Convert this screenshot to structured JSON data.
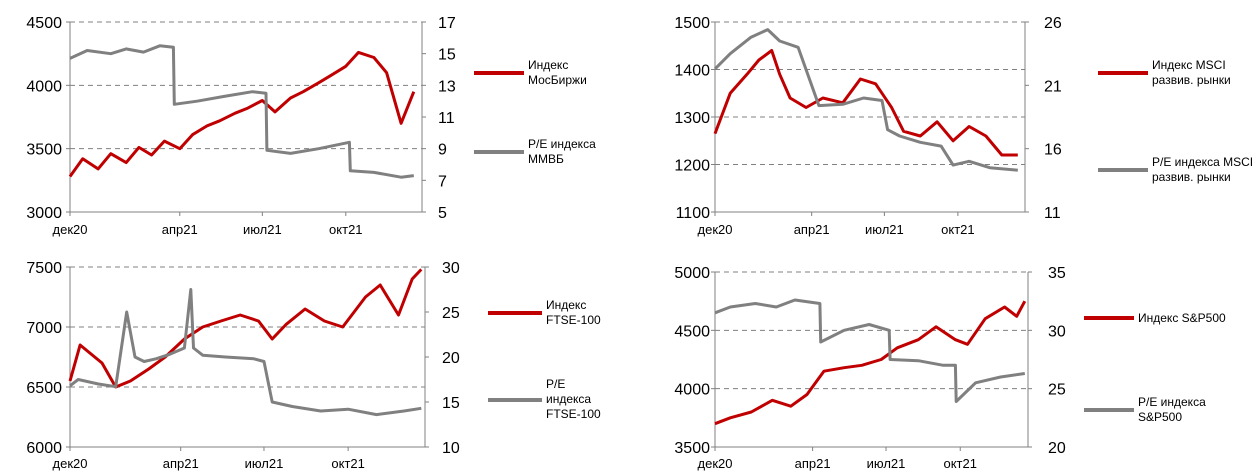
{
  "chart_data": [
    {
      "type": "line",
      "x_ticks": [
        "дек20",
        "апр21",
        "июл21",
        "окт21"
      ],
      "y_left": {
        "min": 3000,
        "max": 4500,
        "ticks": [
          3000,
          3500,
          4000,
          4500
        ]
      },
      "y_right": {
        "min": 5,
        "max": 17,
        "ticks": [
          5,
          7,
          9,
          11,
          13,
          15,
          17
        ]
      },
      "grid": "horizontal-dashed",
      "legend": "right",
      "series": [
        {
          "name": "Индекс МосБиржи",
          "color": "#c00000",
          "axis": "left",
          "x": [
            "2020-12-01",
            "2020-12-15",
            "2021-01-01",
            "2021-01-15",
            "2021-02-01",
            "2021-02-15",
            "2021-03-01",
            "2021-03-15",
            "2021-04-01",
            "2021-04-15",
            "2021-05-01",
            "2021-05-15",
            "2021-06-01",
            "2021-06-15",
            "2021-07-01",
            "2021-07-15",
            "2021-08-01",
            "2021-08-15",
            "2021-09-01",
            "2021-09-15",
            "2021-10-01",
            "2021-10-15",
            "2021-11-01",
            "2021-11-15",
            "2021-12-01",
            "2021-12-15"
          ],
          "y": [
            3280,
            3420,
            3340,
            3460,
            3390,
            3510,
            3450,
            3560,
            3500,
            3610,
            3680,
            3720,
            3780,
            3820,
            3880,
            3790,
            3900,
            3950,
            4020,
            4080,
            4150,
            4260,
            4220,
            4100,
            3700,
            3950
          ]
        },
        {
          "name": "P/E индекса ММВБ",
          "color": "#808080",
          "axis": "right",
          "x": [
            "2020-12-01",
            "2020-12-20",
            "2021-01-15",
            "2021-02-01",
            "2021-02-20",
            "2021-03-10",
            "2021-03-25",
            "2021-03-26",
            "2021-04-20",
            "2021-05-20",
            "2021-06-20",
            "2021-07-05",
            "2021-07-06",
            "2021-08-01",
            "2021-09-01",
            "2021-10-05",
            "2021-10-06",
            "2021-11-01",
            "2021-12-01",
            "2021-12-15"
          ],
          "y": [
            14.7,
            15.2,
            15.0,
            15.3,
            15.1,
            15.5,
            15.4,
            11.8,
            12.0,
            12.3,
            12.6,
            12.5,
            8.9,
            8.7,
            9.0,
            9.4,
            7.6,
            7.5,
            7.2,
            7.3
          ]
        }
      ]
    },
    {
      "type": "line",
      "x_ticks": [
        "дек20",
        "апр21",
        "июл21",
        "окт21"
      ],
      "y_left": {
        "min": 1100,
        "max": 1500,
        "ticks": [
          1100,
          1200,
          1300,
          1400,
          1500
        ]
      },
      "y_right": {
        "min": 11,
        "max": 26,
        "ticks": [
          11,
          16,
          21,
          26
        ]
      },
      "grid": "horizontal-dashed",
      "legend": "right",
      "series": [
        {
          "name": "Индекс MSCI развив. рынки",
          "color": "#c00000",
          "axis": "left",
          "x": [
            "2020-12-01",
            "2020-12-20",
            "2021-01-10",
            "2021-01-25",
            "2021-02-10",
            "2021-02-20",
            "2021-03-05",
            "2021-03-25",
            "2021-04-15",
            "2021-05-10",
            "2021-06-01",
            "2021-06-20",
            "2021-07-10",
            "2021-07-25",
            "2021-08-15",
            "2021-09-05",
            "2021-09-25",
            "2021-10-15",
            "2021-11-05",
            "2021-11-25",
            "2021-12-15"
          ],
          "y": [
            1265,
            1350,
            1390,
            1420,
            1440,
            1390,
            1340,
            1320,
            1340,
            1330,
            1380,
            1370,
            1320,
            1270,
            1260,
            1290,
            1250,
            1280,
            1260,
            1220,
            1220
          ]
        },
        {
          "name": "P/E индекса MSCI развив. рынки",
          "color": "#808080",
          "axis": "right",
          "x": [
            "2020-12-01",
            "2020-12-20",
            "2021-01-15",
            "2021-02-05",
            "2021-02-20",
            "2021-03-15",
            "2021-04-10",
            "2021-05-10",
            "2021-06-05",
            "2021-06-28",
            "2021-07-05",
            "2021-07-20",
            "2021-08-15",
            "2021-09-10",
            "2021-09-25",
            "2021-10-15",
            "2021-11-10",
            "2021-12-15"
          ],
          "y": [
            22.3,
            23.5,
            24.8,
            25.4,
            24.5,
            24.0,
            19.4,
            19.5,
            20.0,
            19.8,
            17.5,
            17.0,
            16.5,
            16.2,
            14.7,
            15.0,
            14.5,
            14.3
          ]
        }
      ]
    },
    {
      "type": "line",
      "x_ticks": [
        "дек20",
        "апр21",
        "июл21",
        "окт21"
      ],
      "y_left": {
        "min": 6000,
        "max": 7500,
        "ticks": [
          6000,
          6500,
          7000,
          7500
        ]
      },
      "y_right": {
        "min": 10,
        "max": 30,
        "ticks": [
          10,
          15,
          20,
          25,
          30
        ]
      },
      "grid": "horizontal-dashed",
      "legend": "right",
      "series": [
        {
          "name": "Индекс FTSE-100",
          "color": "#c00000",
          "axis": "left",
          "x": [
            "2020-12-01",
            "2020-12-12",
            "2021-01-05",
            "2021-01-20",
            "2021-02-05",
            "2021-02-25",
            "2021-03-15",
            "2021-04-05",
            "2021-04-25",
            "2021-05-15",
            "2021-06-05",
            "2021-06-25",
            "2021-07-10",
            "2021-07-25",
            "2021-08-15",
            "2021-09-05",
            "2021-09-25",
            "2021-10-20",
            "2021-11-05",
            "2021-11-25",
            "2021-12-10",
            "2021-12-20"
          ],
          "y": [
            6550,
            6850,
            6700,
            6500,
            6550,
            6650,
            6750,
            6900,
            7000,
            7050,
            7100,
            7050,
            6900,
            7020,
            7150,
            7050,
            7000,
            7250,
            7350,
            7100,
            7400,
            7480
          ]
        },
        {
          "name": "P/E индекса FTSE-100",
          "color": "#808080",
          "axis": "right",
          "x": [
            "2020-12-01",
            "2020-12-10",
            "2021-01-01",
            "2021-01-20",
            "2021-02-01",
            "2021-02-10",
            "2021-02-20",
            "2021-03-05",
            "2021-03-20",
            "2021-04-05",
            "2021-04-12",
            "2021-04-15",
            "2021-04-25",
            "2021-05-20",
            "2021-06-20",
            "2021-07-01",
            "2021-07-10",
            "2021-08-01",
            "2021-09-01",
            "2021-10-01",
            "2021-11-01",
            "2021-12-01",
            "2021-12-20"
          ],
          "y": [
            16.8,
            17.5,
            17.0,
            16.7,
            25.0,
            20.0,
            19.5,
            19.8,
            20.3,
            21.0,
            27.5,
            21.0,
            20.2,
            20.0,
            19.8,
            19.5,
            15.0,
            14.5,
            14.0,
            14.2,
            13.6,
            14.0,
            14.3
          ]
        }
      ]
    },
    {
      "type": "line",
      "x_ticks": [
        "дек20",
        "апр21",
        "июл21",
        "окт21"
      ],
      "y_left": {
        "min": 3500,
        "max": 5000,
        "ticks": [
          3500,
          4000,
          4500,
          5000
        ]
      },
      "y_right": {
        "min": 20,
        "max": 35,
        "ticks": [
          20,
          25,
          30,
          35
        ]
      },
      "grid": "horizontal-dashed",
      "legend": "right",
      "series": [
        {
          "name": "Индекс S&P500",
          "color": "#c00000",
          "axis": "left",
          "x": [
            "2020-12-01",
            "2020-12-20",
            "2021-01-15",
            "2021-02-10",
            "2021-03-05",
            "2021-03-25",
            "2021-04-15",
            "2021-05-10",
            "2021-06-01",
            "2021-06-25",
            "2021-07-15",
            "2021-08-10",
            "2021-09-01",
            "2021-09-25",
            "2021-10-10",
            "2021-11-01",
            "2021-11-25",
            "2021-12-10",
            "2021-12-20"
          ],
          "y": [
            3700,
            3750,
            3800,
            3900,
            3850,
            3950,
            4150,
            4180,
            4200,
            4250,
            4350,
            4420,
            4530,
            4420,
            4380,
            4600,
            4700,
            4620,
            4750
          ]
        },
        {
          "name": "P/E индекса S&P500",
          "color": "#808080",
          "axis": "right",
          "x": [
            "2020-12-01",
            "2020-12-20",
            "2021-01-20",
            "2021-02-15",
            "2021-03-10",
            "2021-04-10",
            "2021-04-11",
            "2021-05-10",
            "2021-06-10",
            "2021-07-05",
            "2021-07-06",
            "2021-08-10",
            "2021-09-10",
            "2021-09-25",
            "2021-09-26",
            "2021-10-20",
            "2021-11-20",
            "2021-12-20"
          ],
          "y": [
            31.5,
            32.0,
            32.3,
            32.0,
            32.6,
            32.3,
            29.0,
            30.0,
            30.5,
            30.0,
            27.5,
            27.4,
            27.0,
            27.0,
            23.9,
            25.5,
            26.0,
            26.3
          ]
        }
      ]
    }
  ]
}
